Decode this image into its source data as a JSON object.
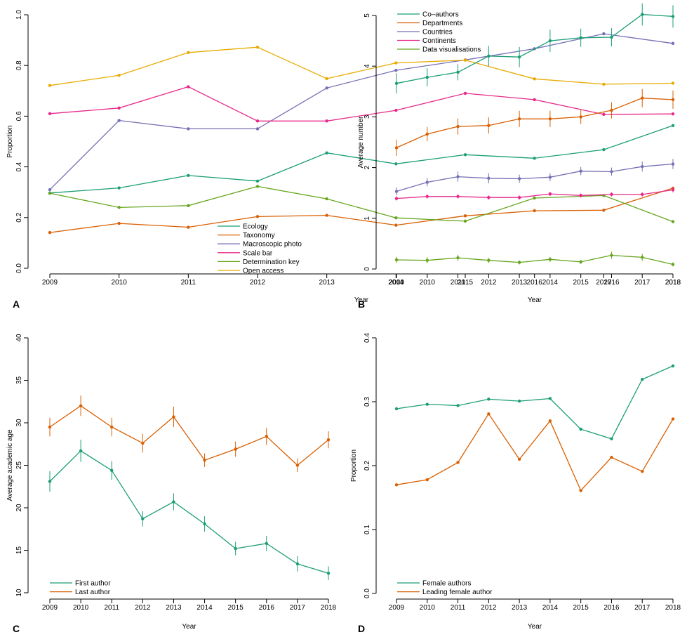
{
  "colors": {
    "green": "#1b9e77",
    "orange": "#d95f02",
    "purple": "#7570b3",
    "pink": "#e7298a",
    "lime": "#66a61e",
    "gold": "#e6ab02"
  },
  "chart_data": [
    {
      "panel": "A",
      "type": "line",
      "xlabel": "Year",
      "ylabel": "Proportion",
      "x": [
        2009,
        2010,
        2011,
        2012,
        2013,
        2014,
        2015,
        2016,
        2017,
        2018
      ],
      "xlim": [
        2009,
        2018
      ],
      "ylim": [
        0,
        1
      ],
      "yticks": [
        "0.0",
        "0.2",
        "0.4",
        "0.6",
        "0.8",
        "1.0"
      ],
      "ytick_values": [
        0,
        0.2,
        0.4,
        0.6,
        0.8,
        1.0
      ],
      "legend_position": "bottom-right",
      "error_bars": false,
      "series": [
        {
          "name": "Ecology",
          "color": "#1b9e77",
          "values": [
            0.297,
            0.317,
            0.366,
            0.344,
            0.455,
            0.412,
            0.448,
            0.434,
            0.468,
            0.563
          ]
        },
        {
          "name": "Taxonomy",
          "color": "#d95f02",
          "values": [
            0.141,
            0.177,
            0.162,
            0.204,
            0.209,
            0.17,
            0.207,
            0.227,
            0.229,
            0.316
          ]
        },
        {
          "name": "Macroscopic photo",
          "color": "#7570b3",
          "values": [
            0.31,
            0.583,
            0.55,
            0.55,
            0.711,
            0.781,
            0.822,
            0.866,
            0.925,
            0.887
          ]
        },
        {
          "name": "Scale bar",
          "color": "#e7298a",
          "values": [
            0.61,
            0.632,
            0.716,
            0.581,
            0.581,
            0.623,
            0.69,
            0.665,
            0.607,
            0.609
          ]
        },
        {
          "name": "Determination key",
          "color": "#66a61e",
          "values": [
            0.296,
            0.24,
            0.247,
            0.323,
            0.274,
            0.199,
            0.186,
            0.277,
            0.287,
            0.184
          ]
        },
        {
          "name": "Open access",
          "color": "#e6ab02",
          "values": [
            0.721,
            0.761,
            0.851,
            0.872,
            0.748,
            0.81,
            0.821,
            0.747,
            0.726,
            0.73
          ]
        }
      ]
    },
    {
      "panel": "B",
      "type": "line",
      "xlabel": "Year",
      "ylabel": "Average number",
      "x": [
        2009,
        2010,
        2011,
        2012,
        2013,
        2014,
        2015,
        2016,
        2017,
        2018
      ],
      "xlim": [
        2009,
        2018
      ],
      "ylim": [
        0,
        5
      ],
      "yticks": [
        "0",
        "1",
        "2",
        "3",
        "4",
        "5"
      ],
      "ytick_values": [
        0,
        1,
        2,
        3,
        4,
        5
      ],
      "legend_position": "top-left",
      "error_bars": true,
      "series": [
        {
          "name": "Co–authors",
          "color": "#1b9e77",
          "values": [
            3.66,
            3.78,
            3.88,
            4.2,
            4.18,
            4.5,
            4.56,
            4.57,
            5.02,
            4.98
          ],
          "err": [
            0.2,
            0.18,
            0.16,
            0.2,
            0.2,
            0.22,
            0.18,
            0.18,
            0.22,
            0.22
          ]
        },
        {
          "name": "Departments",
          "color": "#d95f02",
          "values": [
            2.39,
            2.66,
            2.81,
            2.83,
            2.96,
            2.96,
            3.0,
            3.13,
            3.37,
            3.34
          ],
          "err": [
            0.16,
            0.14,
            0.16,
            0.16,
            0.16,
            0.16,
            0.14,
            0.16,
            0.18,
            0.18
          ]
        },
        {
          "name": "Countries",
          "color": "#7570b3",
          "values": [
            1.53,
            1.71,
            1.82,
            1.79,
            1.78,
            1.81,
            1.93,
            1.92,
            2.02,
            2.07
          ],
          "err": [
            0.08,
            0.08,
            0.1,
            0.1,
            0.08,
            0.08,
            0.08,
            0.08,
            0.1,
            0.1
          ]
        },
        {
          "name": "Continents",
          "color": "#e7298a",
          "values": [
            1.39,
            1.43,
            1.43,
            1.41,
            1.41,
            1.48,
            1.45,
            1.47,
            1.47,
            1.56
          ],
          "err": [
            0.04,
            0.04,
            0.04,
            0.04,
            0.04,
            0.04,
            0.04,
            0.04,
            0.04,
            0.05
          ]
        },
        {
          "name": "Data visualisations",
          "color": "#66a61e",
          "values": [
            0.18,
            0.17,
            0.22,
            0.17,
            0.13,
            0.19,
            0.14,
            0.27,
            0.23,
            0.09
          ],
          "err": [
            0.06,
            0.06,
            0.06,
            0.05,
            0.04,
            0.05,
            0.04,
            0.07,
            0.07,
            0.04
          ]
        }
      ]
    },
    {
      "panel": "C",
      "type": "line",
      "xlabel": "Year",
      "ylabel": "Average academic age",
      "x": [
        2009,
        2010,
        2011,
        2012,
        2013,
        2014,
        2015,
        2016,
        2017,
        2018
      ],
      "xlim": [
        2009,
        2018
      ],
      "ylim": [
        10,
        40
      ],
      "yticks": [
        "10",
        "15",
        "20",
        "25",
        "30",
        "35",
        "40"
      ],
      "ytick_values": [
        10,
        15,
        20,
        25,
        30,
        35,
        40
      ],
      "legend_position": "bottom-left",
      "error_bars": true,
      "series": [
        {
          "name": "First author",
          "color": "#1b9e77",
          "values": [
            23.1,
            26.7,
            24.4,
            18.7,
            20.7,
            18.1,
            15.2,
            15.8,
            13.4,
            12.3
          ],
          "err": [
            1.2,
            1.3,
            1.1,
            0.9,
            1.0,
            0.9,
            0.8,
            0.9,
            0.9,
            0.8
          ]
        },
        {
          "name": "Last author",
          "color": "#d95f02",
          "values": [
            29.5,
            32.0,
            29.5,
            27.6,
            30.7,
            25.6,
            26.9,
            28.4,
            25.0,
            28.0
          ],
          "err": [
            1.1,
            1.2,
            1.1,
            1.1,
            1.2,
            0.8,
            0.9,
            1.0,
            0.8,
            1.0
          ]
        }
      ]
    },
    {
      "panel": "D",
      "type": "line",
      "xlabel": "Year",
      "ylabel": "Proportion",
      "x": [
        2009,
        2010,
        2011,
        2012,
        2013,
        2014,
        2015,
        2016,
        2017,
        2018
      ],
      "xlim": [
        2009,
        2018
      ],
      "ylim": [
        0,
        0.4
      ],
      "yticks": [
        "0.0",
        "0.1",
        "0.2",
        "0.3",
        "0.4"
      ],
      "ytick_values": [
        0,
        0.1,
        0.2,
        0.3,
        0.4
      ],
      "legend_position": "bottom-left",
      "error_bars": false,
      "series": [
        {
          "name": "Female authors",
          "color": "#1b9e77",
          "values": [
            0.289,
            0.296,
            0.294,
            0.304,
            0.301,
            0.305,
            0.257,
            0.242,
            0.335,
            0.356
          ]
        },
        {
          "name": "Leading female author",
          "color": "#d95f02",
          "values": [
            0.17,
            0.178,
            0.205,
            0.281,
            0.21,
            0.27,
            0.161,
            0.213,
            0.191,
            0.273
          ]
        }
      ]
    }
  ]
}
